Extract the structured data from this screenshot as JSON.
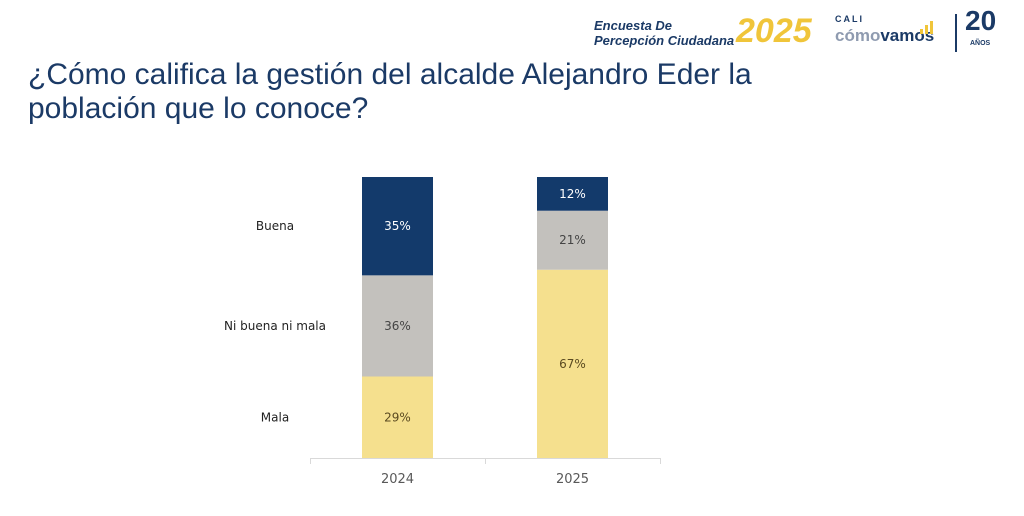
{
  "title": "¿Cómo califica la gestión del alcalde Alejandro Eder la población que lo conoce?",
  "logos": {
    "survey_line1": "Encuesta De",
    "survey_line2": "Percepción Ciudadana",
    "survey_year": "2025",
    "cali": "CALI",
    "como": "cómo",
    "vamos": "vamos",
    "anniversary": "20",
    "anos": "AÑOS"
  },
  "chart_data": {
    "type": "stacked-bar",
    "categories": [
      "2024",
      "2025"
    ],
    "series": [
      {
        "name": "Mala",
        "values": [
          29,
          67
        ],
        "color": "#f5e08e",
        "label_color": "#5a4a20"
      },
      {
        "name": "Ni buena ni mala",
        "values": [
          36,
          21
        ],
        "color": "#c3c1bd",
        "label_color": "#444444"
      },
      {
        "name": "Buena",
        "values": [
          35,
          12
        ],
        "color": "#133a6b",
        "label_color": "#ffffff"
      }
    ],
    "data_labels": [
      [
        "29%",
        "67%"
      ],
      [
        "36%",
        "21%"
      ],
      [
        "35%",
        "12%"
      ]
    ],
    "ylim": [
      0,
      100
    ],
    "legend": "left",
    "grid": false
  }
}
